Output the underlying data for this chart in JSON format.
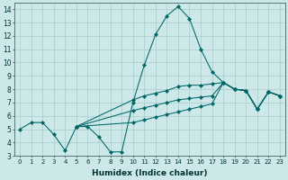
{
  "xlabel": "Humidex (Indice chaleur)",
  "ylabel": "",
  "xlim": [
    -0.5,
    23.5
  ],
  "ylim": [
    3,
    14.5
  ],
  "yticks": [
    3,
    4,
    5,
    6,
    7,
    8,
    9,
    10,
    11,
    12,
    13,
    14
  ],
  "xticks": [
    0,
    1,
    2,
    3,
    4,
    5,
    6,
    7,
    8,
    9,
    10,
    11,
    12,
    13,
    14,
    15,
    16,
    17,
    18,
    19,
    20,
    21,
    22,
    23
  ],
  "background_color": "#cce8e8",
  "grid_color": "#aacccc",
  "line_color": "#006666",
  "series_main": {
    "x": [
      0,
      1,
      2,
      3,
      4,
      5,
      6,
      7,
      8,
      9,
      10,
      11,
      12,
      13,
      14,
      15,
      16,
      17,
      18,
      19,
      20,
      21,
      22,
      23
    ],
    "y": [
      5.0,
      5.5,
      5.5,
      4.6,
      3.4,
      5.2,
      5.2,
      4.4,
      3.3,
      3.3,
      7.0,
      9.8,
      12.1,
      13.5,
      14.2,
      13.3,
      11.0,
      9.3,
      8.5,
      8.0,
      7.9,
      6.5,
      7.8,
      7.5
    ]
  },
  "series_gradual": [
    {
      "x": [
        5,
        10,
        11,
        12,
        13,
        14,
        15,
        16,
        17,
        18,
        19,
        20,
        21,
        22,
        23
      ],
      "y": [
        5.2,
        7.2,
        7.5,
        7.7,
        7.9,
        8.2,
        8.3,
        8.3,
        8.4,
        8.5,
        8.0,
        7.9,
        6.5,
        7.8,
        7.5
      ]
    },
    {
      "x": [
        5,
        10,
        11,
        12,
        13,
        14,
        15,
        16,
        17,
        18,
        19,
        20,
        21,
        22,
        23
      ],
      "y": [
        5.2,
        6.4,
        6.6,
        6.8,
        7.0,
        7.2,
        7.3,
        7.4,
        7.5,
        8.5,
        8.0,
        7.9,
        6.5,
        7.8,
        7.5
      ]
    },
    {
      "x": [
        5,
        10,
        11,
        12,
        13,
        14,
        15,
        16,
        17,
        18,
        19,
        20,
        21,
        22,
        23
      ],
      "y": [
        5.2,
        5.5,
        5.7,
        5.9,
        6.1,
        6.3,
        6.5,
        6.7,
        6.9,
        8.5,
        8.0,
        7.9,
        6.5,
        7.8,
        7.5
      ]
    }
  ]
}
